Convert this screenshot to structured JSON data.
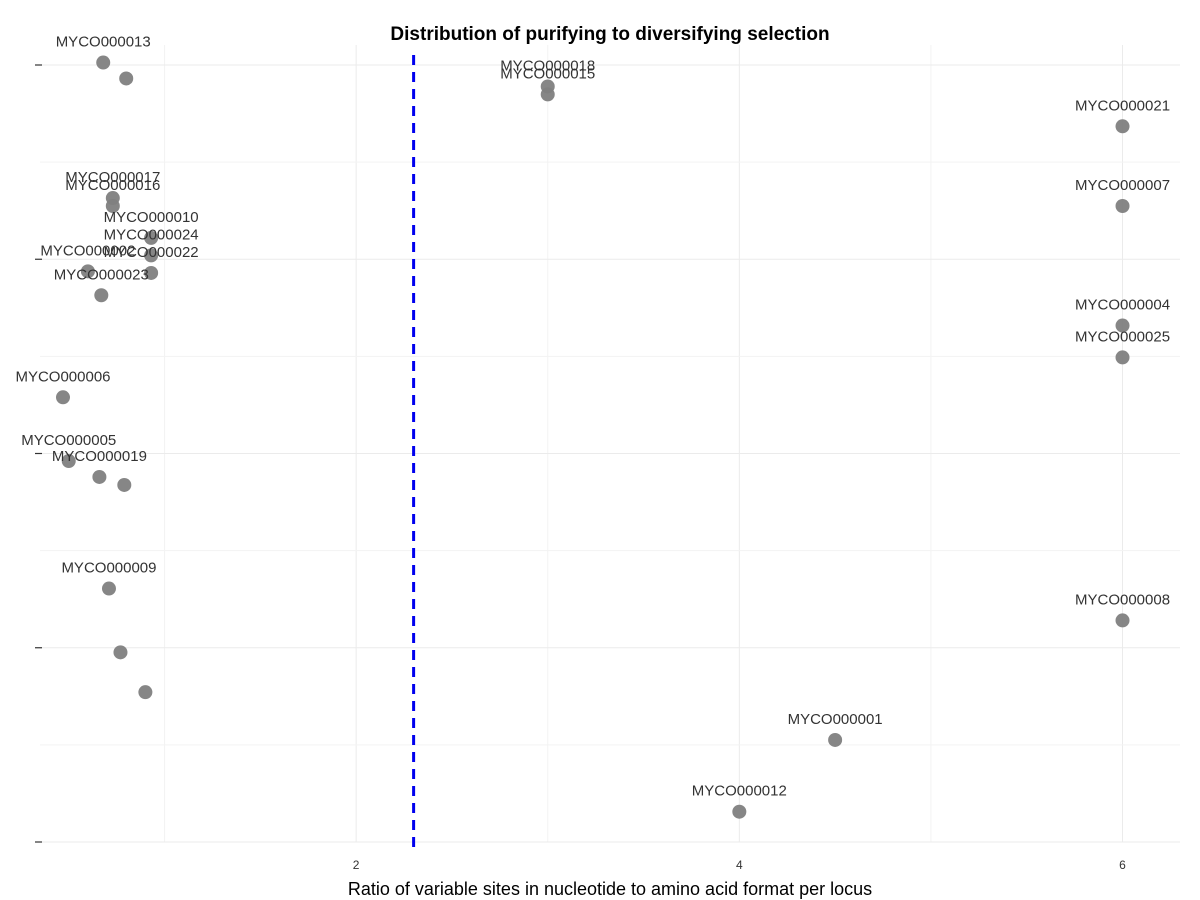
{
  "chart_data": {
    "type": "scatter",
    "title": "Distribution of purifying to diversifying selection",
    "xlabel": "Ratio of variable sites in nucleotide to amino acid format per locus",
    "ylabel": "",
    "x_ticks": [
      2,
      4,
      6
    ],
    "xlim": [
      0.35,
      6.3
    ],
    "ylim": [
      0,
      1
    ],
    "grid": true,
    "point_color": "#808080",
    "threshold": {
      "x": 2.3,
      "color": "#0000ee",
      "style": "dashed"
    },
    "points": [
      {
        "x": 0.68,
        "y": 0.978,
        "label": "MYCO000013"
      },
      {
        "x": 0.8,
        "y": 0.958,
        "label": ""
      },
      {
        "x": 3.0,
        "y": 0.948,
        "label": "MYCO000018"
      },
      {
        "x": 3.0,
        "y": 0.938,
        "label": "MYCO000015"
      },
      {
        "x": 6.0,
        "y": 0.898,
        "label": "MYCO000021"
      },
      {
        "x": 0.73,
        "y": 0.808,
        "label": "MYCO000017"
      },
      {
        "x": 0.73,
        "y": 0.798,
        "label": "MYCO000016"
      },
      {
        "x": 6.0,
        "y": 0.798,
        "label": "MYCO000007"
      },
      {
        "x": 0.93,
        "y": 0.758,
        "label": "MYCO000010"
      },
      {
        "x": 0.93,
        "y": 0.736,
        "label": "MYCO000024"
      },
      {
        "x": 0.6,
        "y": 0.716,
        "label": "MYCO000002"
      },
      {
        "x": 0.93,
        "y": 0.714,
        "label": "MYCO000022"
      },
      {
        "x": 0.67,
        "y": 0.686,
        "label": "MYCO000023"
      },
      {
        "x": 6.0,
        "y": 0.648,
        "label": "MYCO000004"
      },
      {
        "x": 6.0,
        "y": 0.608,
        "label": "MYCO000025"
      },
      {
        "x": 0.47,
        "y": 0.558,
        "label": "MYCO000006"
      },
      {
        "x": 0.5,
        "y": 0.478,
        "label": "MYCO000005"
      },
      {
        "x": 0.66,
        "y": 0.458,
        "label": "MYCO000019"
      },
      {
        "x": 0.79,
        "y": 0.448,
        "label": ""
      },
      {
        "x": 0.71,
        "y": 0.318,
        "label": "MYCO000009"
      },
      {
        "x": 6.0,
        "y": 0.278,
        "label": "MYCO000008"
      },
      {
        "x": 0.77,
        "y": 0.238,
        "label": ""
      },
      {
        "x": 0.9,
        "y": 0.188,
        "label": ""
      },
      {
        "x": 4.5,
        "y": 0.128,
        "label": "MYCO000001"
      },
      {
        "x": 4.0,
        "y": 0.038,
        "label": "MYCO000012"
      }
    ]
  }
}
